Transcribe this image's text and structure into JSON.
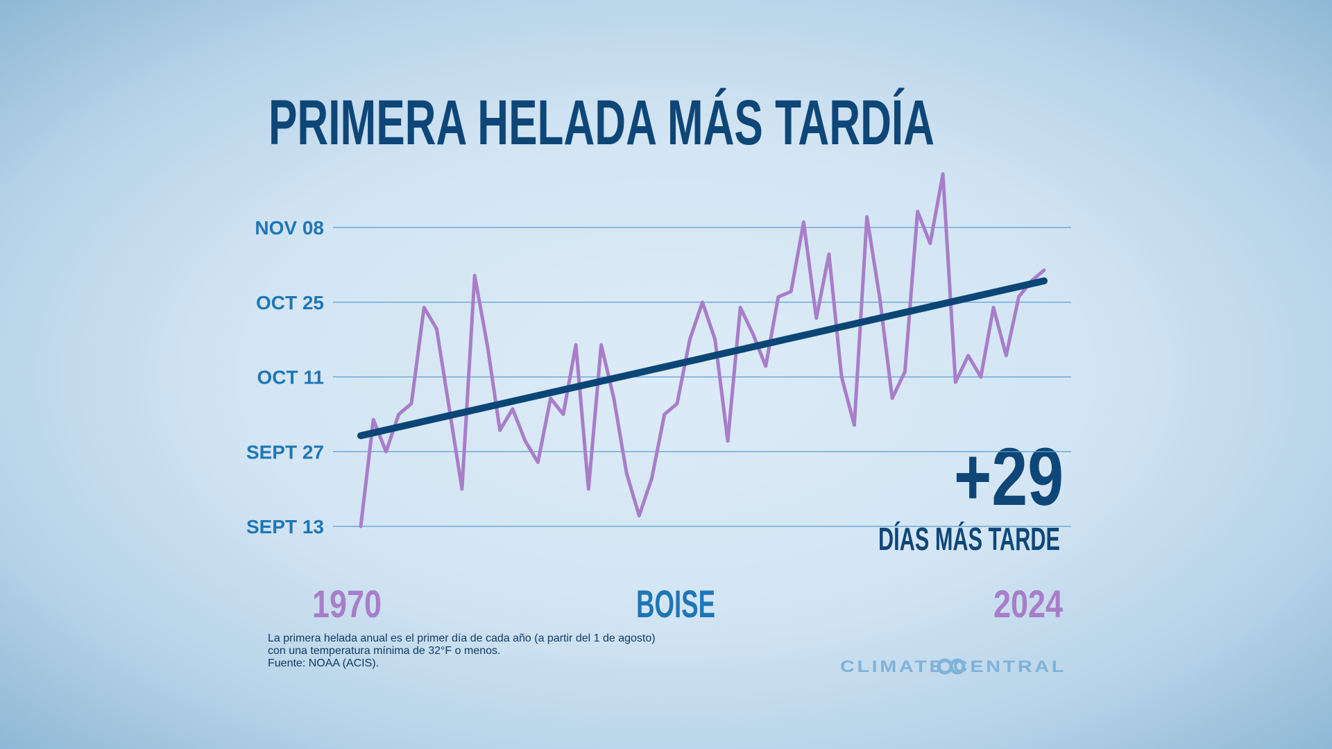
{
  "chart_data": {
    "type": "line",
    "title": "PRIMERA HELADA MÁS TARDÍA",
    "x": [
      1970,
      1971,
      1972,
      1973,
      1974,
      1975,
      1976,
      1977,
      1978,
      1979,
      1980,
      1981,
      1982,
      1983,
      1984,
      1985,
      1986,
      1987,
      1988,
      1989,
      1990,
      1991,
      1992,
      1993,
      1994,
      1995,
      1996,
      1997,
      1998,
      1999,
      2000,
      2001,
      2002,
      2003,
      2004,
      2005,
      2006,
      2007,
      2008,
      2009,
      2010,
      2011,
      2012,
      2013,
      2014,
      2015,
      2016,
      2017,
      2018,
      2019,
      2020,
      2021,
      2022,
      2023,
      2024
    ],
    "series": [
      {
        "color": "#a87dc9",
        "values": [
          256,
          276,
          270,
          277,
          279,
          297,
          293,
          278,
          263,
          303,
          290,
          274,
          278,
          272,
          268,
          280,
          277,
          290,
          263,
          290,
          280,
          266,
          258,
          265,
          277,
          279,
          291,
          298,
          291,
          272,
          297,
          292,
          286,
          299,
          300,
          313,
          295,
          307,
          284,
          275,
          314,
          299,
          280,
          285,
          315,
          309,
          322,
          283,
          288,
          284,
          297,
          288,
          299,
          302,
          304
        ]
      },
      {
        "color": "#0b4676",
        "x": [
          1970,
          2024
        ],
        "values": [
          273,
          302
        ]
      }
    ],
    "xlim": [
      1970,
      2024
    ],
    "xticks": [
      1970,
      2024
    ],
    "ylim": [
      256,
      312
    ],
    "yticks": [
      {
        "value": 256,
        "label": "SEPT 13"
      },
      {
        "value": 270,
        "label": "SEPT 27"
      },
      {
        "value": 284,
        "label": "OCT 11"
      },
      {
        "value": 298,
        "label": "OCT 25"
      },
      {
        "value": 312,
        "label": "NOV 08"
      }
    ],
    "grid": true,
    "location": "BOISE",
    "annotation": {
      "value": "+29",
      "label": "DÍAS MÁS TARDE"
    },
    "notes": [
      "La primera helada anual es el primer día de cada año (a partir del 1 de agosto)",
      "con una temperatura mínima de 32°F o menos.",
      "Fuente: NOAA (ACIS)."
    ],
    "source_logo": "CLIMATE CENTRAL"
  }
}
